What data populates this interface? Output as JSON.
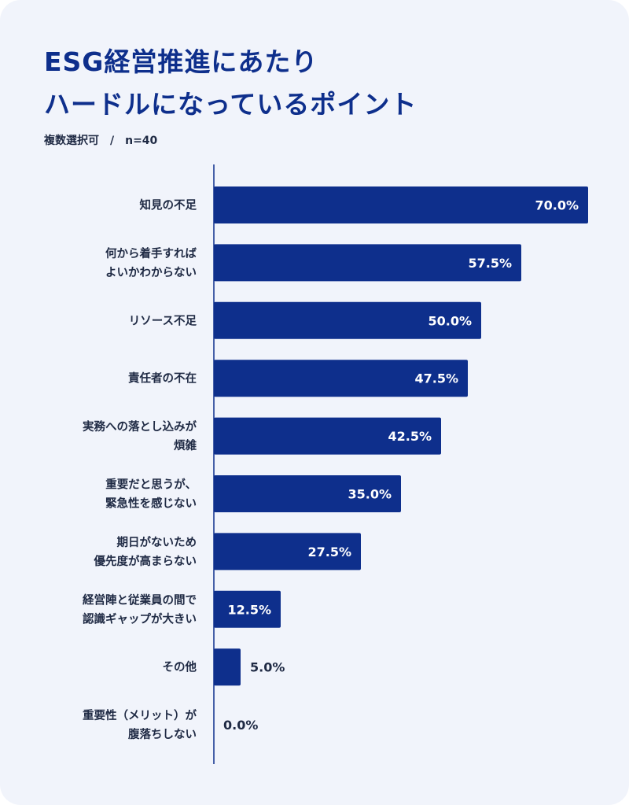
{
  "title_lines": [
    "ESG経営推進にあたり",
    "ハードルになっているポイント"
  ],
  "subtitle": "複数選択可　/　n=40",
  "colors": {
    "card": "#f1f4fb",
    "bar": "#0e2f8c",
    "axis": "#0e2f8c",
    "title": "#0e2f8c",
    "text": "#1f2a44",
    "label_inside": "#ffffff"
  },
  "chart_data": {
    "type": "bar",
    "orientation": "horizontal",
    "unit": "%",
    "xlim": [
      0,
      100
    ],
    "grid": false,
    "categories": [
      [
        "知見の不足"
      ],
      [
        "何から着手すれば",
        "よいかわからない"
      ],
      [
        "リソース不足"
      ],
      [
        "責任者の不在"
      ],
      [
        "実務への落とし込みが",
        "煩雑"
      ],
      [
        "重要だと思うが、",
        "緊急性を感じない"
      ],
      [
        "期日がないため",
        "優先度が高まらない"
      ],
      [
        "経営陣と従業員の間で",
        "認識ギャップが大きい"
      ],
      [
        "その他"
      ],
      [
        "重要性（メリット）が",
        "腹落ちしない"
      ]
    ],
    "values": [
      70.0,
      57.5,
      50.0,
      47.5,
      42.5,
      35.0,
      27.5,
      12.5,
      5.0,
      0.0
    ],
    "value_labels": [
      "70.0%",
      "57.5%",
      "50.0%",
      "47.5%",
      "42.5%",
      "35.0%",
      "27.5%",
      "12.5%",
      "5.0%",
      "0.0%"
    ]
  }
}
